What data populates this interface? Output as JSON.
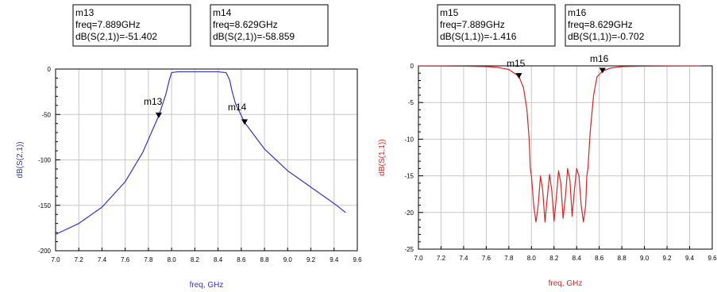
{
  "chart_data": [
    {
      "type": "line",
      "xlabel": "freq, GHz",
      "ylabel": "dB(S(2,1))",
      "xlim": [
        7.0,
        9.6
      ],
      "ylim": [
        -200,
        0
      ],
      "xticks": [
        "7.0",
        "7.2",
        "7.4",
        "7.6",
        "7.8",
        "8.0",
        "8.2",
        "8.4",
        "8.6",
        "8.8",
        "9.0",
        "9.2",
        "9.4",
        "9.6"
      ],
      "yticks": [
        "0",
        "-50",
        "-100",
        "-150",
        "-200"
      ],
      "grid": true,
      "color": "#3333cc",
      "series": [
        {
          "x": [
            7.0,
            7.2,
            7.4,
            7.6,
            7.75,
            7.889,
            7.95,
            7.98,
            8.0,
            8.05,
            8.2,
            8.4,
            8.47,
            8.5,
            8.52,
            8.55,
            8.629,
            8.8,
            9.0,
            9.2,
            9.4,
            9.5
          ],
          "y": [
            -182,
            -170,
            -152,
            -124,
            -92,
            -51.402,
            -28,
            -12,
            -4,
            -3,
            -3,
            -3,
            -4,
            -12,
            -24,
            -38,
            -58.859,
            -88,
            -112,
            -130,
            -148,
            -158
          ]
        }
      ],
      "markers": [
        {
          "name": "m13",
          "x": 7.889,
          "y": -51.402,
          "box": [
            "m13",
            "freq=7.889GHz",
            "dB(S(2,1))=-51.402"
          ]
        },
        {
          "name": "m14",
          "x": 8.629,
          "y": -58.859,
          "box": [
            "m14",
            "freq=8.629GHz",
            "dB(S(2,1))=-58.859"
          ]
        }
      ]
    },
    {
      "type": "line",
      "xlabel": "freq, GHz",
      "ylabel": "dB(S(1,1))",
      "xlim": [
        7.0,
        9.6
      ],
      "ylim": [
        -25,
        0
      ],
      "xticks": [
        "7.0",
        "7.2",
        "7.4",
        "7.6",
        "7.8",
        "8.0",
        "8.2",
        "8.4",
        "8.6",
        "8.8",
        "9.0",
        "9.2",
        "9.4",
        "9.6"
      ],
      "yticks": [
        "0",
        "-5",
        "-10",
        "-15",
        "-20",
        "-25"
      ],
      "grid": true,
      "color": "#dd2222",
      "series": [
        {
          "x": [
            7.0,
            7.2,
            7.4,
            7.6,
            7.7,
            7.8,
            7.889,
            7.93,
            7.96,
            7.98,
            7.99,
            8.0,
            8.02,
            8.04,
            8.06,
            8.08,
            8.1,
            8.12,
            8.14,
            8.16,
            8.18,
            8.2,
            8.22,
            8.24,
            8.26,
            8.28,
            8.3,
            8.32,
            8.34,
            8.36,
            8.38,
            8.4,
            8.42,
            8.44,
            8.46,
            8.48,
            8.49,
            8.5,
            8.52,
            8.55,
            8.58,
            8.629,
            8.7,
            8.8,
            9.0,
            9.2,
            9.4,
            9.5
          ],
          "y": [
            -0.02,
            -0.03,
            -0.05,
            -0.1,
            -0.2,
            -0.5,
            -1.416,
            -3,
            -6,
            -10,
            -14,
            -15,
            -19,
            -21.3,
            -19,
            -15,
            -17,
            -21.3,
            -18,
            -14.8,
            -17,
            -21.2,
            -18,
            -14.3,
            -16,
            -20.8,
            -18,
            -14,
            -15.5,
            -20.5,
            -17,
            -14,
            -15,
            -19,
            -21.3,
            -19,
            -15,
            -14,
            -9,
            -4,
            -1.5,
            -0.702,
            -0.3,
            -0.1,
            -0.05,
            -0.03,
            -0.02,
            -0.02
          ]
        }
      ],
      "markers": [
        {
          "name": "m15",
          "x": 7.889,
          "y": -1.416,
          "box": [
            "m15",
            "freq=7.889GHz",
            "dB(S(1,1))=-1.416"
          ]
        },
        {
          "name": "m16",
          "x": 8.629,
          "y": -0.702,
          "box": [
            "m16",
            "freq=8.629GHz",
            "dB(S(1,1))=-0.702"
          ]
        }
      ]
    }
  ]
}
